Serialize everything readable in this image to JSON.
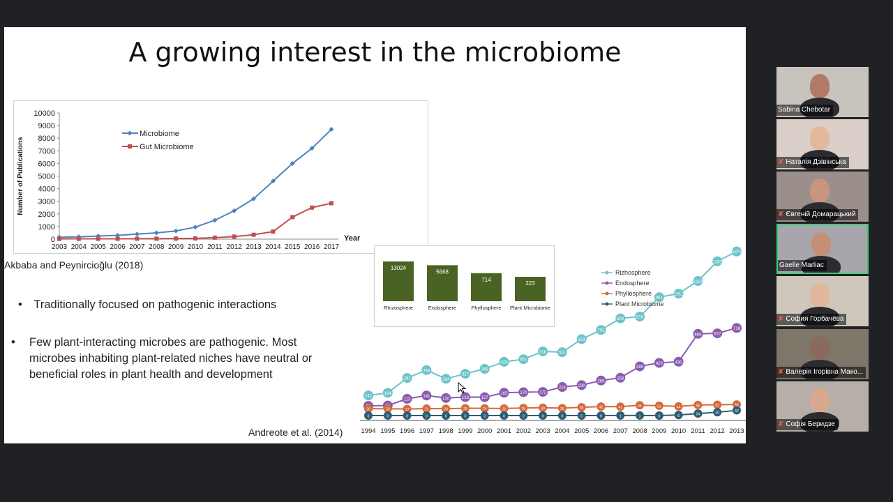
{
  "slide": {
    "title": "A growing interest in the microbiome",
    "citation_top": "Akbaba and Peynircioğlu (2018)",
    "bullet_1": "Traditionally focused on pathogenic interactions",
    "bullet_2_lines": [
      "Few plant-interacting microbes are pathogenic. Most",
      "microbes inhabiting plant-related niches have neutral or",
      "beneficial roles in plant health and development"
    ],
    "citation_bottom": "Andreote et al. (2014)"
  },
  "participants": [
    {
      "name": "Sabina Chebotar",
      "muted": false,
      "active": false
    },
    {
      "name": "Наталія Дзівінська",
      "muted": true,
      "active": false
    },
    {
      "name": "Євгеній Домарацький",
      "muted": true,
      "active": false
    },
    {
      "name": "Gaelle Marliac",
      "muted": false,
      "active": true
    },
    {
      "name": "София Горбачёва",
      "muted": true,
      "active": false
    },
    {
      "name": "Валерія Ігорівна Мако...",
      "muted": true,
      "active": false
    },
    {
      "name": "Софія Беридзе",
      "muted": true,
      "active": false
    }
  ],
  "chart_data": [
    {
      "type": "line",
      "title": "",
      "xlabel": "Year",
      "ylabel": "Number of Publications",
      "ylim": [
        0,
        10000
      ],
      "yticks": [
        0,
        1000,
        2000,
        3000,
        4000,
        5000,
        6000,
        7000,
        8000,
        9000,
        10000
      ],
      "legend_position": "top-left",
      "x": [
        "2003",
        "2004",
        "2005",
        "2006",
        "2007",
        "2008",
        "2009",
        "2010",
        "2011",
        "2012",
        "2013",
        "2014",
        "2015",
        "2016",
        "2017"
      ],
      "series": [
        {
          "name": "Microbiome",
          "color": "#4f81bd",
          "values": [
            150,
            180,
            250,
            300,
            400,
            500,
            650,
            950,
            1500,
            2250,
            3200,
            4600,
            6000,
            7200,
            8700
          ]
        },
        {
          "name": "Gut Microbiome",
          "color": "#c0504d",
          "values": [
            20,
            25,
            30,
            30,
            35,
            40,
            45,
            60,
            120,
            200,
            350,
            600,
            1750,
            2500,
            2850
          ]
        }
      ]
    },
    {
      "type": "bar",
      "title": "",
      "categories": [
        "Rhizosphere",
        "Endosphere",
        "Phyllosphere",
        "Plant Microbiome"
      ],
      "values": [
        13024,
        5668,
        714,
        223
      ],
      "value_labels": [
        "13024",
        "5668",
        "714",
        "223"
      ],
      "bar_color": "#4a6224"
    },
    {
      "type": "line",
      "title": "",
      "legend_position": "top-left",
      "x": [
        "1994",
        "1995",
        "1996",
        "1997",
        "1998",
        "1999",
        "2000",
        "2001",
        "2002",
        "2003",
        "2004",
        "2005",
        "2006",
        "2007",
        "2008",
        "2009",
        "2010",
        "2011",
        "2012",
        "2013"
      ],
      "series": [
        {
          "name": "Rizhosphere",
          "color": "#6cc3c9",
          "values": [
            142,
            164,
            291,
            358,
            284,
            327,
            369,
            429,
            451,
            518,
            511,
            623,
            701,
            800,
            815,
            981,
            1011,
            1119,
            1287,
            1371
          ],
          "labels": [
            "142",
            "164",
            "291",
            "358",
            "284",
            "327",
            "369",
            "429",
            "451",
            "518",
            "511",
            "623",
            "701",
            "800",
            "815",
            "981",
            "1011",
            "1119",
            "1287",
            "1371"
          ]
        },
        {
          "name": "Endosphere",
          "color": "#8a5cb0",
          "values": [
            53,
            56,
            113,
            141,
            120,
            128,
            127,
            165,
            170,
            172,
            214,
            230,
            269,
            293,
            390,
            420,
            430,
            668,
            672,
            718
          ],
          "labels": [
            "53",
            "56",
            "113",
            "141",
            "120",
            "128",
            "127",
            "165",
            "170",
            "172",
            "214",
            "230",
            "269",
            "293",
            "390",
            "420",
            "430",
            "668",
            "672",
            "718"
          ]
        },
        {
          "name": "Phyllosphere",
          "color": "#d56a3a",
          "values": [
            20,
            20,
            17,
            21,
            20,
            25,
            24,
            22,
            28,
            30,
            26,
            35,
            42,
            41,
            55,
            51,
            44,
            58,
            61,
            63
          ],
          "labels": [
            "20",
            "20",
            "17",
            "21",
            "20",
            "25",
            "24",
            "22",
            "28",
            "30",
            "26",
            "35",
            "42",
            "41",
            "55",
            "51",
            "44",
            "58",
            "61",
            "63"
          ]
        },
        {
          "name": "Plant Microbiome",
          "color": "#2f5d73",
          "values": [
            0,
            0,
            0,
            0,
            0,
            0,
            0,
            0,
            0,
            0,
            0,
            0,
            0,
            1,
            1,
            0,
            6,
            24,
            40,
            62
          ],
          "labels": [
            "0",
            "0",
            "0",
            "0",
            "0",
            "0",
            "0",
            "0",
            "0",
            "0",
            "0",
            "0",
            "0",
            "1",
            "1",
            "0",
            "6",
            "24",
            "40",
            "62"
          ]
        }
      ]
    }
  ]
}
